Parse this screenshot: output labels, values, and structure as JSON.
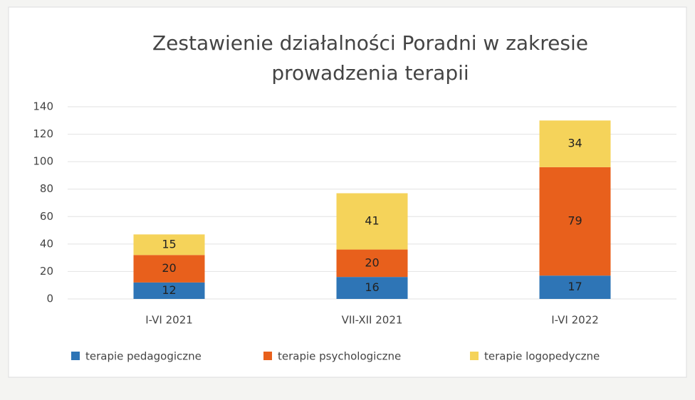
{
  "chart_data": {
    "type": "stacked_bar",
    "title": "Zestawienie działalności Poradni w zakresie prowadzenia terapii",
    "categories": [
      "I-VI 2021",
      "VII-XII 2021",
      "I-VI 2022"
    ],
    "series": [
      {
        "name": "terapie pedagogiczne",
        "color": "#2e75b6",
        "values": [
          12,
          16,
          17
        ]
      },
      {
        "name": "terapie psychologiczne",
        "color": "#e8601c",
        "values": [
          20,
          20,
          79
        ]
      },
      {
        "name": "terapie logopedyczne",
        "color": "#f5d35a",
        "values": [
          15,
          41,
          34
        ]
      }
    ],
    "ylim": [
      0,
      140
    ],
    "yticks": [
      0,
      20,
      40,
      60,
      80,
      100,
      120,
      140
    ],
    "grid": true,
    "legend": "bottom"
  }
}
